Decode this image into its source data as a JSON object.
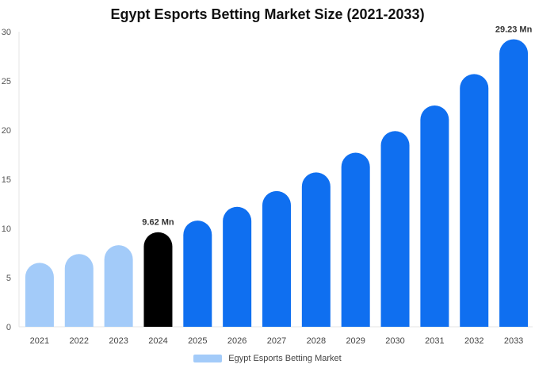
{
  "chart_data": {
    "type": "bar",
    "title": "Egypt Esports Betting Market Size (2021-2033)",
    "categories": [
      "2021",
      "2022",
      "2023",
      "2024",
      "2025",
      "2026",
      "2027",
      "2028",
      "2029",
      "2030",
      "2031",
      "2032",
      "2033"
    ],
    "series": [
      {
        "name": "Egypt Esports Betting Market",
        "values": [
          6.5,
          7.4,
          8.3,
          9.62,
          10.8,
          12.2,
          13.8,
          15.7,
          17.7,
          19.9,
          22.5,
          25.7,
          29.23
        ]
      }
    ],
    "yticks": [
      0,
      5,
      10,
      15,
      20,
      25,
      30
    ],
    "ylim": [
      0,
      30
    ],
    "xlabel": "",
    "ylabel": "",
    "data_labels": [
      {
        "category": "2024",
        "text": "9.62 Mn"
      },
      {
        "category": "2033",
        "text": "29.23 Mn"
      }
    ],
    "grid": false,
    "legend_position": "bottom",
    "colors": {
      "historical": "#a3cbf9",
      "current": "#000000",
      "forecast": "#0f6ff0",
      "legend_swatch": "#a3cbf9"
    },
    "highlight_index": 3
  }
}
